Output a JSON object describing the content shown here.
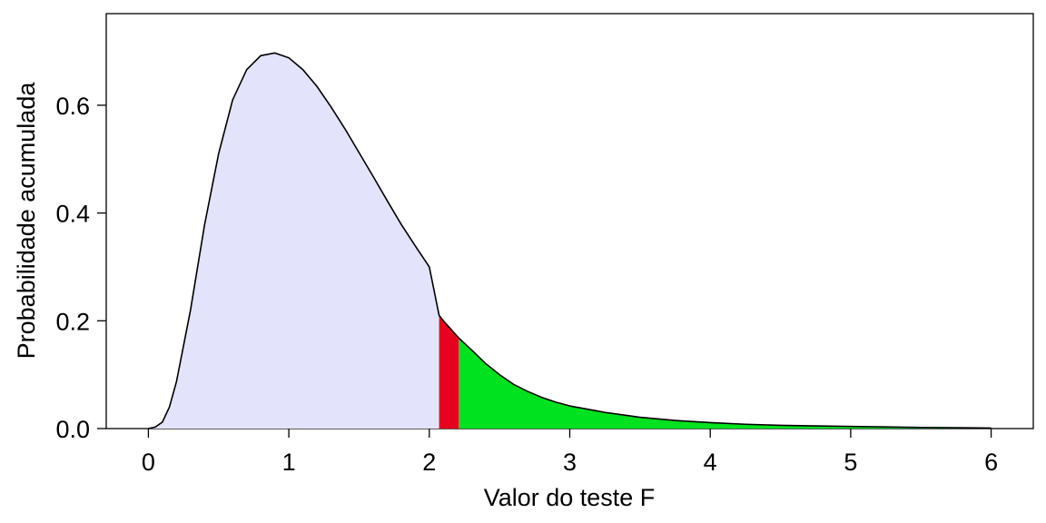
{
  "chart_data": {
    "type": "area",
    "title": "",
    "xlabel": "Valor do teste F",
    "ylabel": "Probabilidade acumulada",
    "xlim": [
      -0.3,
      6.3
    ],
    "ylim": [
      0,
      0.77
    ],
    "x_ticks": [
      0,
      1,
      2,
      3,
      4,
      5,
      6
    ],
    "x_tick_labels": [
      "0",
      "1",
      "2",
      "3",
      "4",
      "5",
      "6"
    ],
    "y_ticks": [
      0.0,
      0.2,
      0.4,
      0.6
    ],
    "y_tick_labels": [
      "0.0",
      "0.2",
      "0.4",
      "0.6"
    ],
    "grid": false,
    "legend": "none",
    "curve": {
      "x": [
        0,
        0.05,
        0.1,
        0.15,
        0.2,
        0.3,
        0.4,
        0.5,
        0.6,
        0.7,
        0.8,
        0.9,
        1.0,
        1.1,
        1.2,
        1.3,
        1.4,
        1.5,
        1.6,
        1.7,
        1.8,
        1.9,
        2.0,
        2.07,
        2.1,
        2.21,
        2.3,
        2.4,
        2.5,
        2.6,
        2.7,
        2.8,
        2.9,
        3.0,
        3.25,
        3.5,
        3.75,
        4.0,
        4.25,
        4.5,
        4.75,
        5.0,
        5.25,
        5.5,
        5.75,
        6.0
      ],
      "y": [
        0.0,
        0.003,
        0.012,
        0.04,
        0.087,
        0.22,
        0.378,
        0.51,
        0.61,
        0.666,
        0.692,
        0.697,
        0.688,
        0.666,
        0.635,
        0.597,
        0.556,
        0.512,
        0.468,
        0.423,
        0.379,
        0.339,
        0.3,
        0.21,
        0.2,
        0.168,
        0.146,
        0.121,
        0.1,
        0.082,
        0.069,
        0.058,
        0.049,
        0.042,
        0.03,
        0.021,
        0.015,
        0.011,
        0.008,
        0.006,
        0.005,
        0.004,
        0.003,
        0.002,
        0.0015,
        0.001
      ]
    },
    "regions": [
      {
        "from": 0,
        "to": 2.07,
        "color": "#e3e3fb"
      },
      {
        "from": 2.07,
        "to": 2.21,
        "color": "#e8001f"
      },
      {
        "from": 2.21,
        "to": 6.0,
        "color": "#00e21f"
      }
    ],
    "curve_color": "#000000"
  }
}
